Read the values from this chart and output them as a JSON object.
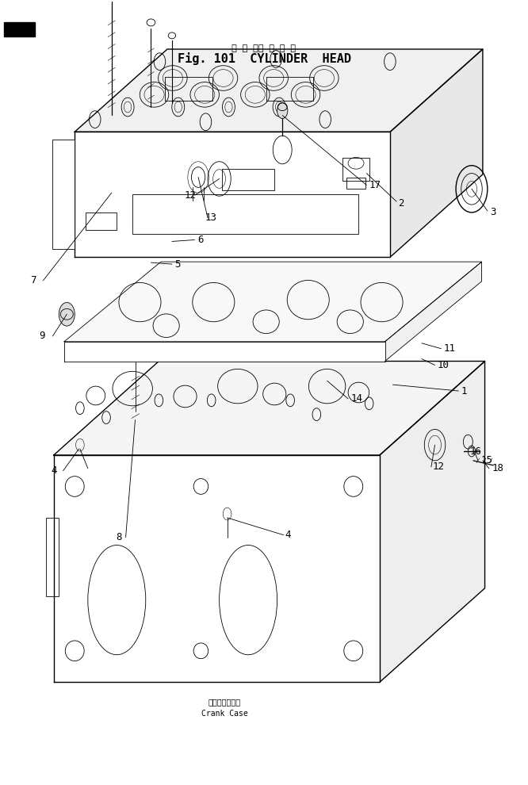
{
  "title_japanese": "シ リ ンダ ヘ ッ ド",
  "title_english": "Fig. 101  CYLINDER  HEAD",
  "crank_case_japanese": "クランクケース",
  "crank_case_english": "Crank Case",
  "background_color": "#ffffff",
  "line_color": "#000000",
  "title_fontsize": 11,
  "label_fontsize": 9,
  "small_label_fontsize": 7
}
